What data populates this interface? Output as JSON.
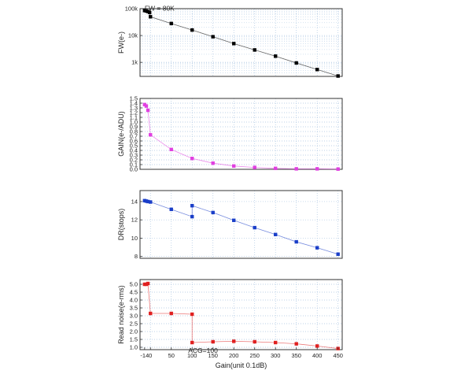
{
  "chart_data": [
    {
      "type": "scatter",
      "ylabel": "FW(e-)",
      "yscale": "log",
      "ylim": [
        300,
        100000
      ],
      "yticks": [
        1000,
        10000,
        100000
      ],
      "yticklabels": [
        "1k",
        "10k",
        "100k"
      ],
      "xlim": [
        -25,
        460
      ],
      "grid": true,
      "color": "#000000",
      "marker": "square",
      "annotation": "FW = 80K",
      "series": [
        {
          "points": [
            [
              -14,
              85000
            ],
            [
              -10,
              82000
            ],
            [
              -6,
              78000
            ],
            [
              -2,
              72000
            ],
            [
              0,
              50000
            ],
            [
              50,
              28000
            ],
            [
              100,
              16000
            ],
            [
              150,
              9000
            ],
            [
              200,
              5000
            ],
            [
              250,
              2900
            ],
            [
              300,
              1700
            ],
            [
              350,
              950
            ],
            [
              400,
              540
            ],
            [
              450,
              310
            ]
          ]
        }
      ]
    },
    {
      "type": "scatter",
      "ylabel": "GAIN(e-/ADU)",
      "ylim": [
        0,
        1.5
      ],
      "yticks": [
        0.0,
        0.1,
        0.2,
        0.3,
        0.4,
        0.5,
        0.6,
        0.7,
        0.8,
        0.9,
        1.0,
        1.1,
        1.2,
        1.3,
        1.4,
        1.5
      ],
      "yticklabels": [
        "0.0",
        "0.1",
        "0.2",
        "0.3",
        "0.4",
        "0.5",
        "0.6",
        "0.7",
        "0.8",
        "0.9",
        "1.0",
        "1.1",
        "1.2",
        "1.3",
        "1.4",
        "1.5"
      ],
      "xlim": [
        -25,
        460
      ],
      "grid": true,
      "color": "#e040e0",
      "marker": "square",
      "series": [
        {
          "points": [
            [
              -14,
              1.37
            ],
            [
              -10,
              1.34
            ],
            [
              -6,
              1.25
            ],
            [
              0,
              0.73
            ],
            [
              50,
              0.42
            ],
            [
              100,
              0.23
            ],
            [
              150,
              0.13
            ],
            [
              200,
              0.07
            ],
            [
              250,
              0.04
            ],
            [
              300,
              0.02
            ],
            [
              350,
              0.01
            ],
            [
              400,
              0.01
            ],
            [
              450,
              0.005
            ]
          ]
        }
      ]
    },
    {
      "type": "scatter",
      "ylabel": "DR(stops)",
      "ylim": [
        7.8,
        15.2
      ],
      "yticks": [
        8,
        10,
        12,
        14
      ],
      "yticklabels": [
        "8",
        "10",
        "12",
        "14"
      ],
      "xlim": [
        -25,
        460
      ],
      "grid": true,
      "color": "#1a3ec8",
      "marker": "square",
      "series": [
        {
          "points": [
            [
              -14,
              14.1
            ],
            [
              -10,
              14.05
            ],
            [
              -6,
              14.0
            ],
            [
              0,
              13.95
            ],
            [
              50,
              13.15
            ],
            [
              100,
              12.35
            ],
            [
              100,
              13.55
            ],
            [
              150,
              12.8
            ],
            [
              200,
              11.95
            ],
            [
              250,
              11.15
            ],
            [
              300,
              10.4
            ],
            [
              350,
              9.6
            ],
            [
              400,
              8.95
            ],
            [
              450,
              8.25
            ]
          ]
        }
      ]
    },
    {
      "type": "scatter",
      "ylabel": "Read noise(e-rms)",
      "ylim": [
        0.85,
        5.3
      ],
      "yticks": [
        1.0,
        1.5,
        2.0,
        2.5,
        3.0,
        3.5,
        4.0,
        4.5,
        5.0
      ],
      "yticklabels": [
        "1.0",
        "1.5",
        "2.0",
        "2.5",
        "3.0",
        "3.5",
        "4.0",
        "4.5",
        "5.0"
      ],
      "xlabel": "Gain(unit 0.1dB)",
      "xlim": [
        -25,
        460
      ],
      "xticks": [
        -14,
        0,
        50,
        100,
        150,
        200,
        250,
        300,
        350,
        400,
        450
      ],
      "xticklabels": [
        "-14",
        "0",
        "50",
        "100",
        "150",
        "200",
        "250",
        "300",
        "350",
        "400",
        "450"
      ],
      "grid": true,
      "color": "#e02020",
      "marker": "square",
      "annotation": "ACG=100",
      "series": [
        {
          "points": [
            [
              -14,
              5.0
            ],
            [
              -10,
              5.0
            ],
            [
              -6,
              5.05
            ],
            [
              0,
              3.15
            ],
            [
              50,
              3.15
            ],
            [
              100,
              3.1
            ],
            [
              100,
              1.3
            ],
            [
              150,
              1.35
            ],
            [
              200,
              1.38
            ],
            [
              250,
              1.35
            ],
            [
              300,
              1.3
            ],
            [
              350,
              1.22
            ],
            [
              400,
              1.08
            ],
            [
              450,
              0.92
            ]
          ]
        }
      ]
    }
  ]
}
